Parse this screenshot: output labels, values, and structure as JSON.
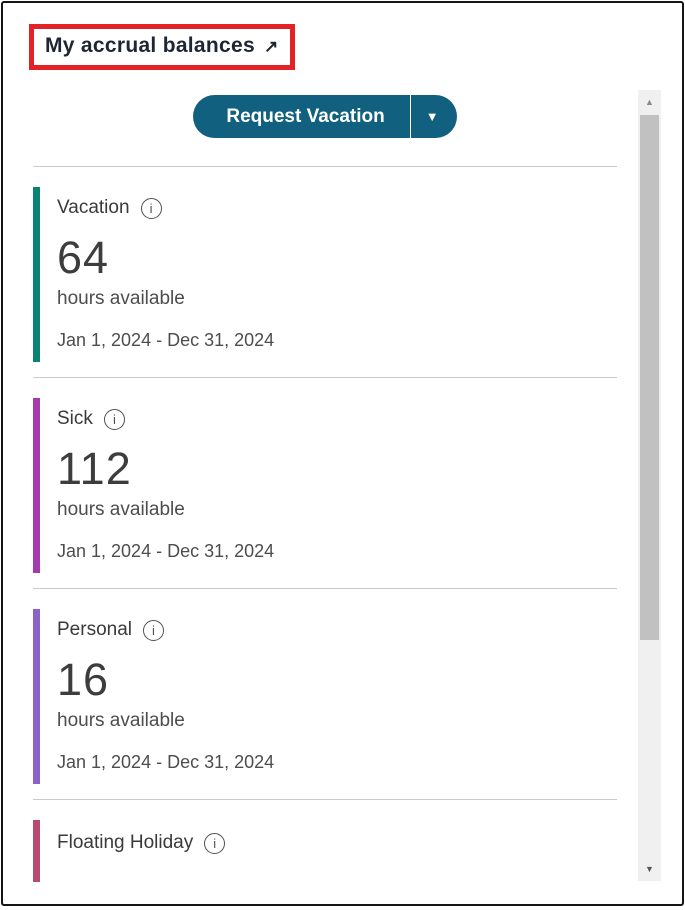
{
  "widget": {
    "title": "My accrual balances",
    "annotation_color": "#e32227"
  },
  "icons": {
    "external_link": "↗",
    "dropdown": "▼",
    "scroll_up": "▲",
    "scroll_down": "▼",
    "info": "i"
  },
  "toolbar": {
    "request_button_label": "Request Vacation",
    "button_color": "#11607f"
  },
  "cards": [
    {
      "label": "Vacation",
      "value": "64",
      "unit": "hours available",
      "period": "Jan 1, 2024 - Dec 31, 2024",
      "accent": "#0b8276"
    },
    {
      "label": "Sick",
      "value": "112",
      "unit": "hours available",
      "period": "Jan 1, 2024 - Dec 31, 2024",
      "accent": "#a63baf"
    },
    {
      "label": "Personal",
      "value": "16",
      "unit": "hours available",
      "period": "Jan 1, 2024 - Dec 31, 2024",
      "accent": "#8a63c5"
    },
    {
      "label": "Floating Holiday",
      "accent": "#b84a70"
    }
  ]
}
